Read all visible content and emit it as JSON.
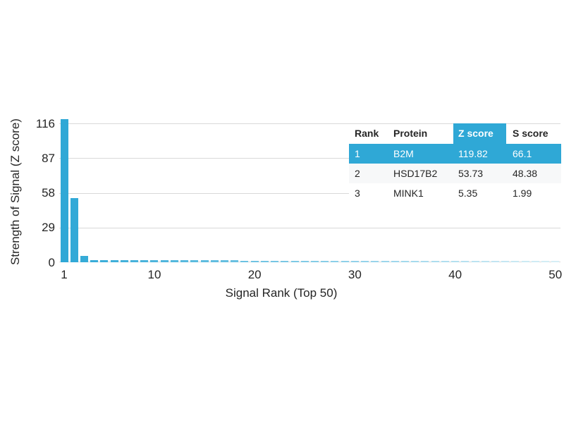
{
  "colors": {
    "accent_blue": "#2FA8D6",
    "bar_fade_end": "#D6EEF6",
    "gridline": "#D9D9D9",
    "text": "#252525",
    "row_alt_bg": "#F7F8F9",
    "highlight_text": "#FFFFFF"
  },
  "chart_data": {
    "type": "bar",
    "title": "",
    "xlabel": "Signal Rank (Top 50)",
    "ylabel": "Strength of Signal (Z score)",
    "x_ticks": [
      1,
      10,
      20,
      30,
      40,
      50
    ],
    "y_ticks": [
      116,
      87,
      58,
      29,
      0
    ],
    "ylim": [
      0,
      122
    ],
    "xlim": [
      1,
      50
    ],
    "grid": "horizontal",
    "legend": "none",
    "x": [
      1,
      2,
      3,
      4,
      5,
      6,
      7,
      8,
      9,
      10,
      11,
      12,
      13,
      14,
      15,
      16,
      17,
      18,
      19,
      20,
      21,
      22,
      23,
      24,
      25,
      26,
      27,
      28,
      29,
      30,
      31,
      32,
      33,
      34,
      35,
      36,
      37,
      38,
      39,
      40,
      41,
      42,
      43,
      44,
      45,
      46,
      47,
      48,
      49,
      50
    ],
    "values": [
      119.82,
      53.73,
      5.35,
      1.9,
      1.85,
      1.8,
      1.75,
      1.7,
      1.68,
      1.65,
      1.62,
      1.6,
      1.58,
      1.56,
      1.54,
      1.52,
      1.5,
      1.5,
      1.48,
      1.46,
      1.45,
      1.44,
      1.42,
      1.4,
      1.4,
      1.38,
      1.36,
      1.35,
      1.34,
      1.32,
      1.3,
      1.3,
      1.28,
      1.26,
      1.25,
      1.24,
      1.22,
      1.2,
      1.2,
      1.18,
      1.16,
      1.15,
      1.14,
      1.12,
      1.1,
      1.1,
      1.08,
      1.06,
      1.05,
      1.02
    ]
  },
  "table": {
    "columns": [
      "Rank",
      "Protein",
      "Z score",
      "S score"
    ],
    "highlighted_column": "Z score",
    "rows": [
      {
        "cells": [
          "1",
          "B2M",
          "119.82",
          "66.1"
        ],
        "highlighted": true
      },
      {
        "cells": [
          "2",
          "HSD17B2",
          "53.73",
          "48.38"
        ],
        "highlighted": false
      },
      {
        "cells": [
          "3",
          "MINK1",
          "5.35",
          "1.99"
        ],
        "highlighted": false
      }
    ]
  }
}
